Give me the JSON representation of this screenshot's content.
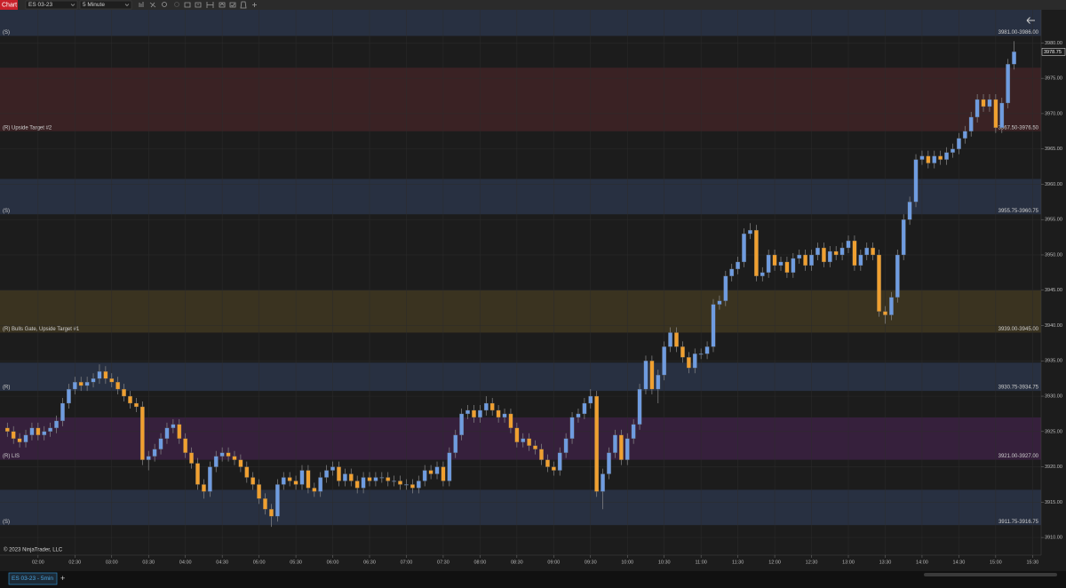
{
  "toolbar": {
    "tab": "Chart",
    "instrument": "ES 03-23",
    "interval": "5 Minute"
  },
  "chart_data": {
    "type": "candlestick",
    "up_color": "#6f9ce0",
    "down_color": "#f0a030",
    "grid": true,
    "copyright": "© 2023 NinjaTrader, LLC",
    "xlim": [
      89,
      937
    ],
    "ylim": [
      3907.5,
      3984.7
    ],
    "xticks": [
      {
        "value": 120,
        "label": "02:00"
      },
      {
        "value": 150,
        "label": "02:30"
      },
      {
        "value": 180,
        "label": "03:00"
      },
      {
        "value": 210,
        "label": "03:30"
      },
      {
        "value": 240,
        "label": "04:00"
      },
      {
        "value": 270,
        "label": "04:30"
      },
      {
        "value": 300,
        "label": "05:00"
      },
      {
        "value": 330,
        "label": "05:30"
      },
      {
        "value": 360,
        "label": "06:00"
      },
      {
        "value": 390,
        "label": "06:30"
      },
      {
        "value": 420,
        "label": "07:00"
      },
      {
        "value": 450,
        "label": "07:30"
      },
      {
        "value": 480,
        "label": "08:00"
      },
      {
        "value": 510,
        "label": "08:30"
      },
      {
        "value": 540,
        "label": "09:00"
      },
      {
        "value": 570,
        "label": "09:30"
      },
      {
        "value": 600,
        "label": "10:00"
      },
      {
        "value": 630,
        "label": "10:30"
      },
      {
        "value": 660,
        "label": "11:00"
      },
      {
        "value": 690,
        "label": "11:30"
      },
      {
        "value": 720,
        "label": "12:00"
      },
      {
        "value": 750,
        "label": "12:30"
      },
      {
        "value": 780,
        "label": "13:00"
      },
      {
        "value": 810,
        "label": "13:30"
      },
      {
        "value": 840,
        "label": "14:00"
      },
      {
        "value": 870,
        "label": "14:30"
      },
      {
        "value": 900,
        "label": "15:00"
      },
      {
        "value": 930,
        "label": "15:30"
      }
    ],
    "yticks": [
      {
        "value": 3910,
        "label": "3910.00"
      },
      {
        "value": 3915,
        "label": "3915.00"
      },
      {
        "value": 3920,
        "label": "3920.00"
      },
      {
        "value": 3925,
        "label": "3925.00"
      },
      {
        "value": 3930,
        "label": "3930.00"
      },
      {
        "value": 3935,
        "label": "3935.00"
      },
      {
        "value": 3940,
        "label": "3940.00"
      },
      {
        "value": 3945,
        "label": "3945.00"
      },
      {
        "value": 3950,
        "label": "3950.00"
      },
      {
        "value": 3955,
        "label": "3955.00"
      },
      {
        "value": 3960,
        "label": "3960.00"
      },
      {
        "value": 3965,
        "label": "3965.00"
      },
      {
        "value": 3970,
        "label": "3970.00"
      },
      {
        "value": 3975,
        "label": "3975.00"
      },
      {
        "value": 3980,
        "label": "3980.00"
      }
    ],
    "zones": [
      {
        "name": "(S)",
        "range_label": "3981.00-3986.00",
        "low": 3981,
        "high": 3986,
        "color": "#283041"
      },
      {
        "name": "(R) Upside Target #2",
        "range_label": "3967.50-3976.50",
        "low": 3967.5,
        "high": 3976.5,
        "color": "#3a2224"
      },
      {
        "name": "(S)",
        "range_label": "3955.75-3960.75",
        "low": 3955.75,
        "high": 3960.75,
        "color": "#283041"
      },
      {
        "name": "(R) Bulls Gate, Upside Target #1",
        "range_label": "3939.00-3945.00",
        "low": 3939,
        "high": 3945,
        "color": "#3a3320"
      },
      {
        "name": "(R)",
        "range_label": "3930.75-3934.75",
        "low": 3930.75,
        "high": 3934.75,
        "color": "#283041"
      },
      {
        "name": "(R) LIS",
        "range_label": "3921.00-3927.00",
        "low": 3921,
        "high": 3927,
        "color": "#36203c"
      },
      {
        "name": "(S)",
        "range_label": "3911.75-3916.75",
        "low": 3911.75,
        "high": 3916.75,
        "color": "#283041"
      }
    ],
    "x": [
      95,
      100,
      105,
      110,
      115,
      120,
      125,
      130,
      135,
      140,
      145,
      150,
      155,
      160,
      165,
      170,
      175,
      180,
      185,
      190,
      195,
      200,
      205,
      210,
      215,
      220,
      225,
      230,
      235,
      240,
      245,
      250,
      255,
      260,
      265,
      270,
      275,
      280,
      285,
      290,
      295,
      300,
      305,
      310,
      315,
      320,
      325,
      330,
      335,
      340,
      345,
      350,
      355,
      360,
      365,
      370,
      375,
      380,
      385,
      390,
      395,
      400,
      405,
      410,
      415,
      420,
      425,
      430,
      435,
      440,
      445,
      450,
      455,
      460,
      465,
      470,
      475,
      480,
      485,
      490,
      495,
      500,
      505,
      510,
      515,
      520,
      525,
      530,
      535,
      540,
      545,
      550,
      555,
      560,
      565,
      570,
      575,
      580,
      585,
      590,
      595,
      600,
      605,
      610,
      615,
      620,
      625,
      630,
      635,
      640,
      645,
      650,
      655,
      660,
      665,
      670,
      675,
      680,
      685,
      690,
      695,
      700,
      705,
      710,
      715,
      720,
      725,
      730,
      735,
      740,
      745,
      750,
      755,
      760,
      765,
      770,
      775,
      780,
      785,
      790,
      795,
      800,
      805,
      810,
      815,
      820,
      825,
      830,
      835,
      840,
      845,
      850,
      855,
      860,
      865,
      870,
      875,
      880,
      885,
      890,
      895,
      900,
      905,
      910,
      915
    ],
    "open": [
      3925.5,
      3925,
      3924,
      3923.5,
      3924.5,
      3925.5,
      3924.5,
      3925,
      3925.5,
      3926.5,
      3929,
      3931,
      3932,
      3931.5,
      3932,
      3932.5,
      3933.5,
      3932.5,
      3932,
      3931,
      3930,
      3929,
      3928.5,
      3921,
      3921.5,
      3922.5,
      3924,
      3925.5,
      3926,
      3924,
      3922,
      3920.5,
      3917.5,
      3916.5,
      3920,
      3921.5,
      3922,
      3921.5,
      3921,
      3920,
      3918.5,
      3917.5,
      3915.5,
      3914,
      3913,
      3917.5,
      3918.5,
      3918,
      3917.5,
      3919.5,
      3917,
      3916.5,
      3918.5,
      3919.5,
      3920,
      3918,
      3919,
      3918,
      3917,
      3918.5,
      3918,
      3918.5,
      3918.5,
      3918,
      3918,
      3917.5,
      3917.5,
      3917,
      3918,
      3919.5,
      3919,
      3920,
      3918,
      3922,
      3924.5,
      3927.5,
      3928,
      3927,
      3928,
      3929,
      3928,
      3927,
      3927.5,
      3925.5,
      3923.5,
      3924,
      3923,
      3922.5,
      3921,
      3920,
      3919.5,
      3922,
      3924,
      3927,
      3927.5,
      3929,
      3930,
      3916.5,
      3919,
      3922,
      3924.5,
      3921,
      3924,
      3926,
      3931,
      3935,
      3931,
      3933,
      3937,
      3939,
      3937,
      3935.5,
      3934,
      3936,
      3936,
      3937,
      3943,
      3943.5,
      3947,
      3948,
      3949,
      3953,
      3953.5,
      3947,
      3947.5,
      3950,
      3948.5,
      3949,
      3947.5,
      3949.5,
      3950,
      3948.5,
      3950,
      3951,
      3949,
      3950.5,
      3950,
      3951,
      3952,
      3948.5,
      3950,
      3951,
      3950,
      3942,
      3941.5,
      3944,
      3950,
      3955,
      3957.5,
      3963.5,
      3964,
      3963,
      3964,
      3963.5,
      3964.5,
      3965,
      3966.5,
      3967.5,
      3969.5,
      3972,
      3971,
      3972,
      3968,
      3971.5,
      3977
    ],
    "high": [
      3926.25,
      3925.75,
      3924.75,
      3925.25,
      3926.25,
      3926.25,
      3925.75,
      3926.25,
      3927.25,
      3929.75,
      3931.75,
      3932.75,
      3932.75,
      3932.75,
      3933.25,
      3934.5,
      3934.25,
      3933.25,
      3932.75,
      3931.75,
      3930.75,
      3929.75,
      3929.25,
      3922.25,
      3923.25,
      3924.75,
      3926.25,
      3926.75,
      3926.75,
      3924.75,
      3922.75,
      3921.25,
      3918.25,
      3920.75,
      3922.25,
      3922.75,
      3922.75,
      3922.25,
      3921.75,
      3920.75,
      3919.25,
      3918.25,
      3916.25,
      3914.75,
      3918.25,
      3919.25,
      3919.25,
      3918.75,
      3920.25,
      3920.25,
      3917.75,
      3919.25,
      3920.25,
      3920.75,
      3920.75,
      3919.75,
      3919.75,
      3918.75,
      3919.25,
      3919.25,
      3919.25,
      3919.25,
      3919.25,
      3918.75,
      3918.75,
      3918.25,
      3918.25,
      3918.75,
      3920.25,
      3920.25,
      3920.75,
      3920.75,
      3922.75,
      3925.25,
      3928.25,
      3928.75,
      3928.75,
      3928.75,
      3930,
      3929.75,
      3928.75,
      3928.25,
      3928.25,
      3926.25,
      3924.75,
      3924.75,
      3923.75,
      3923.25,
      3921.75,
      3920.75,
      3922.75,
      3924.75,
      3927.75,
      3928.25,
      3929.75,
      3931,
      3930.75,
      3919.75,
      3922.75,
      3925.25,
      3925.25,
      3924.75,
      3926.75,
      3931.75,
      3935.75,
      3935.75,
      3933.75,
      3937.75,
      3939.75,
      3939.75,
      3937.75,
      3936.25,
      3936.75,
      3936.75,
      3937.75,
      3943.75,
      3944.25,
      3947.75,
      3948.75,
      3949.75,
      3953.75,
      3954.5,
      3954.25,
      3948.25,
      3950.75,
      3950.75,
      3949.75,
      3949.75,
      3950.25,
      3950.75,
      3950.75,
      3950.75,
      3951.75,
      3951.75,
      3951.25,
      3951.25,
      3951.75,
      3952.75,
      3952.75,
      3950.75,
      3951.75,
      3951.75,
      3950.75,
      3942.75,
      3944.75,
      3950.75,
      3955.75,
      3958.25,
      3964.25,
      3964.75,
      3964.75,
      3964.75,
      3964.75,
      3965.25,
      3965.75,
      3967.25,
      3968.25,
      3970.25,
      3972.75,
      3972.75,
      3972.75,
      3972.75,
      3972.25,
      3977.75,
      3980.25
    ],
    "low": [
      3924.25,
      3923.25,
      3922.75,
      3922.75,
      3923.75,
      3923.75,
      3923.75,
      3924.25,
      3924.75,
      3925.75,
      3928.25,
      3930.25,
      3930.75,
      3930.75,
      3931.25,
      3931.75,
      3931.75,
      3931.25,
      3930.25,
      3929.25,
      3928.25,
      3927.75,
      3920.25,
      3919.5,
      3920.75,
      3921.75,
      3923.25,
      3924.75,
      3923.25,
      3921.25,
      3919.75,
      3916.75,
      3915.5,
      3915.75,
      3919.25,
      3920.75,
      3920.75,
      3920.25,
      3919.25,
      3917.75,
      3916.75,
      3914.75,
      3913.25,
      3911.5,
      3912.25,
      3916.75,
      3917.25,
      3916.75,
      3916.75,
      3916.25,
      3915.75,
      3915.75,
      3917.75,
      3918.75,
      3917.25,
      3917.25,
      3917.25,
      3916.25,
      3916.25,
      3917.25,
      3917.25,
      3917.75,
      3917.25,
      3917.25,
      3916.75,
      3916.75,
      3916.25,
      3916.25,
      3917.25,
      3918.25,
      3918.25,
      3917.25,
      3917.25,
      3921.25,
      3923.75,
      3926.75,
      3926.25,
      3926.25,
      3927.25,
      3927.25,
      3926.25,
      3926.25,
      3924.75,
      3922.75,
      3922.75,
      3922.25,
      3921.75,
      3920.25,
      3919.25,
      3918.75,
      3918.75,
      3921.25,
      3923.25,
      3926.25,
      3926.75,
      3928.25,
      3915.75,
      3914,
      3918.25,
      3921.25,
      3920.25,
      3920.25,
      3923.25,
      3925.25,
      3930.25,
      3930.25,
      3929,
      3932.25,
      3936.25,
      3936.25,
      3934.75,
      3933.25,
      3933.25,
      3935.25,
      3935.25,
      3936.25,
      3942.25,
      3942.75,
      3946.25,
      3947.25,
      3948.25,
      3952.25,
      3946.25,
      3946.25,
      3946.75,
      3947.75,
      3947.75,
      3946.75,
      3946.75,
      3948.75,
      3947.75,
      3947.75,
      3949.25,
      3948.25,
      3948.25,
      3949.25,
      3949.25,
      3950.25,
      3947.75,
      3947.75,
      3949.25,
      3949.25,
      3941.25,
      3940.25,
      3940.75,
      3943.25,
      3949.25,
      3954.25,
      3956.75,
      3962.75,
      3962.25,
      3962.25,
      3962.75,
      3962.75,
      3963.75,
      3964.25,
      3965.75,
      3966.75,
      3968.75,
      3970.25,
      3970.25,
      3967.25,
      3967.25,
      3970.75,
      3976.25
    ],
    "close": [
      3925,
      3924,
      3923.5,
      3924.5,
      3925.5,
      3924.5,
      3925,
      3925.5,
      3926.5,
      3929,
      3931,
      3932,
      3931.5,
      3932,
      3932.5,
      3933.5,
      3932.5,
      3932,
      3931,
      3930,
      3929,
      3928.5,
      3921,
      3921.5,
      3922.5,
      3924,
      3925.5,
      3926,
      3924,
      3922,
      3920.5,
      3917.5,
      3916.5,
      3920,
      3921.5,
      3922,
      3921.5,
      3921,
      3920,
      3918.5,
      3917.5,
      3915.5,
      3914,
      3913,
      3917.5,
      3918.5,
      3918,
      3917.5,
      3919.5,
      3917,
      3916.5,
      3918.5,
      3919.5,
      3920,
      3918,
      3919,
      3918,
      3917,
      3918.5,
      3918,
      3918.5,
      3918.5,
      3918,
      3918,
      3917.5,
      3917.5,
      3917,
      3918,
      3919.5,
      3919,
      3920,
      3918,
      3922,
      3924.5,
      3927.5,
      3928,
      3927,
      3928,
      3929,
      3928,
      3927,
      3927.5,
      3925.5,
      3923.5,
      3924,
      3923,
      3922.5,
      3921,
      3920,
      3919.5,
      3922,
      3924,
      3927,
      3927.5,
      3929,
      3930,
      3916.5,
      3919,
      3922,
      3924.5,
      3921,
      3924,
      3926,
      3931,
      3935,
      3931,
      3933,
      3937,
      3939,
      3937,
      3935.5,
      3934,
      3936,
      3936,
      3937,
      3943,
      3943.5,
      3947,
      3948,
      3949,
      3953,
      3953.5,
      3947,
      3947.5,
      3950,
      3948.5,
      3949,
      3947.5,
      3949.5,
      3950,
      3948.5,
      3950,
      3951,
      3949,
      3950.5,
      3950,
      3951,
      3952,
      3948.5,
      3950,
      3951,
      3950,
      3942,
      3941.5,
      3944,
      3950,
      3955,
      3957.5,
      3963.5,
      3964,
      3963,
      3964,
      3963.5,
      3964.5,
      3965,
      3966.5,
      3967.5,
      3969.5,
      3972,
      3971,
      3972,
      3968,
      3971.5,
      3977,
      3978.75
    ]
  },
  "tabs": [
    {
      "label": "ES 03-23 - 5min"
    }
  ],
  "add_tab": "+"
}
